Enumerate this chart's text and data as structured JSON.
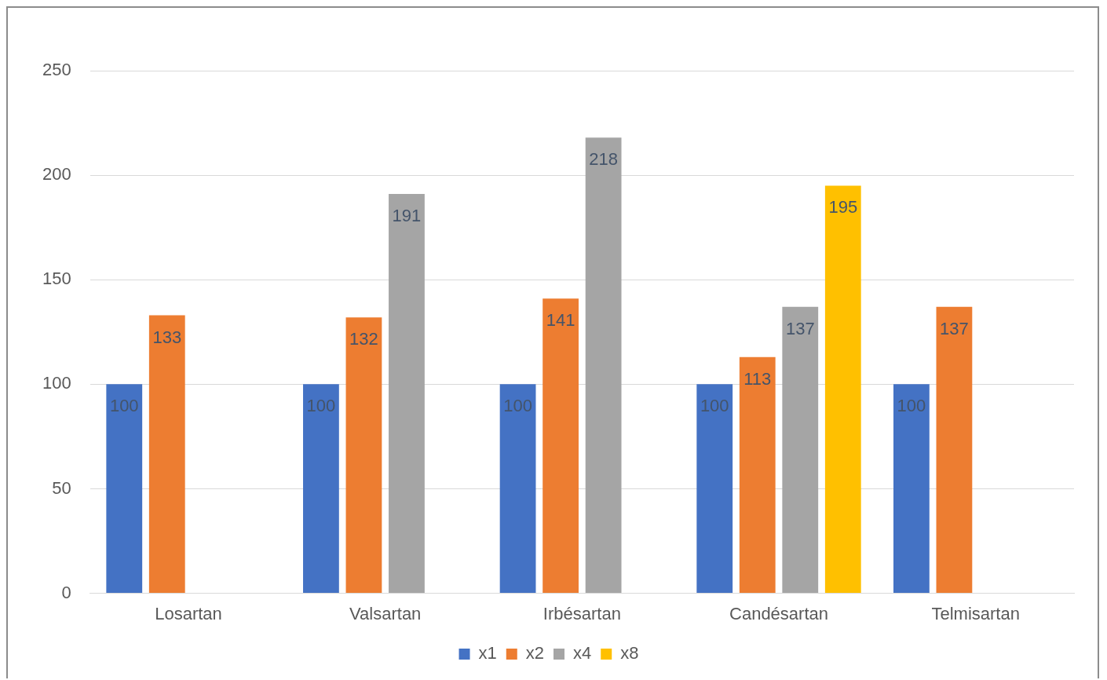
{
  "chart_data": {
    "type": "bar",
    "categories": [
      "Losartan",
      "Valsartan",
      "Irbésartan",
      "Candésartan",
      "Telmisartan"
    ],
    "series": [
      {
        "name": "x1",
        "color": "#4472c4",
        "values": [
          100,
          100,
          100,
          100,
          100
        ]
      },
      {
        "name": "x2",
        "color": "#ed7d31",
        "values": [
          133,
          132,
          141,
          113,
          137
        ]
      },
      {
        "name": "x4",
        "color": "#a5a5a5",
        "values": [
          null,
          191,
          218,
          137,
          null
        ]
      },
      {
        "name": "x8",
        "color": "#ffc000",
        "values": [
          null,
          null,
          null,
          195,
          null
        ]
      }
    ],
    "ylim": [
      0,
      250
    ],
    "yticks": [
      0,
      50,
      100,
      150,
      200,
      250
    ],
    "grid": "y",
    "legend": "bottom",
    "data_labels": true
  }
}
